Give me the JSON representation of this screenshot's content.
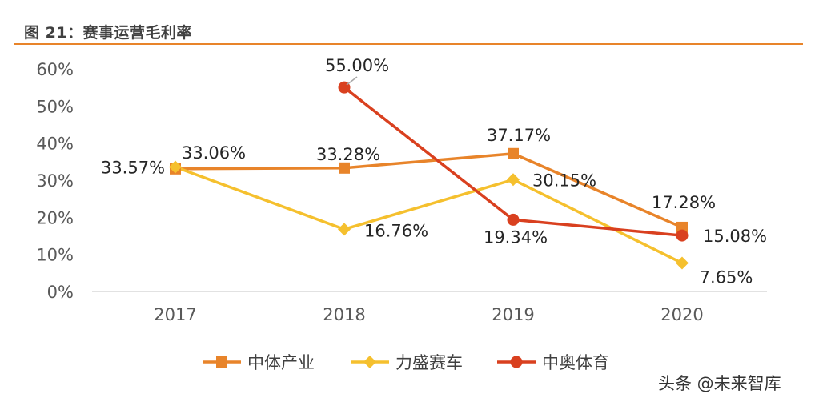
{
  "header": {
    "title": "图 21：赛事运营毛利率"
  },
  "watermark": "头条 @未来智库",
  "chart_data": {
    "type": "line",
    "title": "图 21：赛事运营毛利率",
    "xlabel": "",
    "ylabel": "",
    "categories": [
      "2017",
      "2018",
      "2019",
      "2020"
    ],
    "ylim": [
      0,
      60
    ],
    "yticks": [
      "0%",
      "10%",
      "20%",
      "30%",
      "40%",
      "50%",
      "60%"
    ],
    "grid": false,
    "legend_position": "bottom",
    "series": [
      {
        "name": "中体产业",
        "color": "#e8842a",
        "marker": "square",
        "values": [
          33.06,
          33.28,
          37.17,
          17.28
        ],
        "labels": [
          "33.06%",
          "33.28%",
          "37.17%",
          "17.28%"
        ]
      },
      {
        "name": "力盛赛车",
        "color": "#f5c02e",
        "marker": "diamond",
        "values": [
          33.57,
          16.76,
          30.15,
          7.65
        ],
        "labels": [
          "33.57%",
          "16.76%",
          "30.15%",
          "7.65%"
        ]
      },
      {
        "name": "中奥体育",
        "color": "#d9401f",
        "marker": "circle",
        "values": [
          null,
          55.0,
          19.34,
          15.08
        ],
        "labels": [
          null,
          "55.00%",
          "19.34%",
          "15.08%"
        ]
      }
    ]
  }
}
